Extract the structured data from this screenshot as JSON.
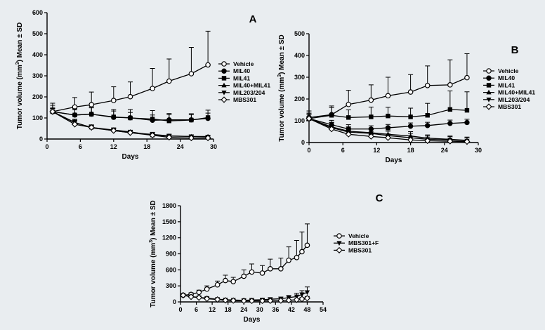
{
  "colors": {
    "background": "#e9edf0",
    "ink": "#000000",
    "open_fill": "#ffffff"
  },
  "chart_data": [
    {
      "panel_label": "A",
      "type": "line",
      "title": "",
      "xlabel": "Days",
      "ylabel_parts": [
        "Tumor volume (mm",
        "3",
        ") Mean ",
        "±",
        " SD"
      ],
      "xlim": [
        0,
        30
      ],
      "ylim": [
        0,
        600
      ],
      "xticks": [
        0,
        6,
        12,
        18,
        24,
        30
      ],
      "yticks": [
        0,
        100,
        200,
        300,
        400,
        500,
        600
      ],
      "legend_position": "right",
      "series": [
        {
          "name": "Vehicle",
          "marker": "circle-open",
          "x": [
            1,
            5,
            8,
            12,
            15,
            19,
            22,
            26,
            29
          ],
          "values": [
            130,
            152,
            163,
            183,
            201,
            240,
            275,
            310,
            352
          ],
          "err": [
            40,
            45,
            60,
            65,
            70,
            95,
            105,
            125,
            160
          ]
        },
        {
          "name": "MIL40",
          "marker": "circle-filled",
          "x": [
            1,
            5,
            8,
            12,
            15,
            19,
            22,
            26,
            29
          ],
          "values": [
            130,
            114,
            118,
            103,
            101,
            89,
            91,
            91,
            98
          ],
          "err": [
            20,
            25,
            30,
            30,
            25,
            25,
            25,
            25,
            25
          ]
        },
        {
          "name": "MIL41",
          "marker": "square-filled",
          "x": [
            1,
            5,
            8,
            12,
            15,
            19,
            22,
            26,
            29
          ],
          "values": [
            130,
            114,
            118,
            105,
            100,
            95,
            86,
            90,
            102
          ],
          "err": [
            30,
            30,
            35,
            35,
            40,
            40,
            35,
            30,
            35
          ]
        },
        {
          "name": "MIL40+MIL41",
          "marker": "triangle-up-filled",
          "x": [
            1,
            5,
            8,
            12,
            15,
            19,
            22,
            26,
            29
          ],
          "values": [
            130,
            78,
            55,
            43,
            34,
            18,
            14,
            12,
            12
          ],
          "err": [
            15,
            12,
            12,
            10,
            8,
            8,
            6,
            6,
            6
          ]
        },
        {
          "name": "MIL203/204",
          "marker": "triangle-down-filled",
          "x": [
            1,
            5,
            8,
            12,
            15,
            19,
            22,
            26,
            29
          ],
          "values": [
            130,
            79,
            53,
            40,
            30,
            22,
            15,
            12,
            10
          ],
          "err": [
            15,
            15,
            12,
            10,
            10,
            10,
            8,
            8,
            6
          ]
        },
        {
          "name": "MBS301",
          "marker": "diamond-open",
          "x": [
            1,
            5,
            8,
            12,
            15,
            19,
            22,
            26,
            29
          ],
          "values": [
            130,
            70,
            55,
            40,
            30,
            18,
            8,
            5,
            5
          ],
          "err": [
            15,
            15,
            12,
            10,
            8,
            8,
            5,
            5,
            5
          ]
        }
      ]
    },
    {
      "panel_label": "B",
      "type": "line",
      "title": "",
      "xlabel": "Days",
      "ylabel_parts": [
        "Tumor volume (mm",
        "3",
        ") Mean ",
        "±",
        " SD"
      ],
      "xlim": [
        0,
        30
      ],
      "ylim": [
        0,
        500
      ],
      "xticks": [
        0,
        6,
        12,
        18,
        24,
        30
      ],
      "yticks": [
        0,
        100,
        200,
        300,
        400,
        500
      ],
      "legend_position": "right",
      "series": [
        {
          "name": "Vehicle",
          "marker": "circle-open",
          "x": [
            0,
            4,
            7,
            11,
            14,
            18,
            21,
            25,
            28
          ],
          "values": [
            115,
            128,
            175,
            195,
            215,
            232,
            262,
            265,
            298
          ],
          "err": [
            30,
            40,
            65,
            70,
            85,
            80,
            90,
            115,
            110
          ]
        },
        {
          "name": "MIL40",
          "marker": "circle-filled",
          "x": [
            0,
            4,
            7,
            11,
            14,
            18,
            21,
            25,
            28
          ],
          "values": [
            110,
            82,
            62,
            62,
            68,
            75,
            78,
            88,
            92
          ],
          "err": [
            20,
            20,
            20,
            15,
            15,
            15,
            15,
            15,
            15
          ]
        },
        {
          "name": "MIL41",
          "marker": "square-filled",
          "x": [
            0,
            4,
            7,
            11,
            14,
            18,
            21,
            25,
            28
          ],
          "values": [
            110,
            125,
            115,
            118,
            122,
            118,
            125,
            152,
            148
          ],
          "err": [
            25,
            35,
            35,
            45,
            40,
            40,
            55,
            85,
            85
          ]
        },
        {
          "name": "MIL40+MIL41",
          "marker": "triangle-up-filled",
          "x": [
            0,
            4,
            7,
            11,
            14,
            18,
            21,
            25,
            28
          ],
          "values": [
            110,
            72,
            52,
            45,
            38,
            30,
            20,
            15,
            10
          ],
          "err": [
            20,
            20,
            20,
            20,
            20,
            20,
            15,
            15,
            15
          ]
        },
        {
          "name": "MIL203/204",
          "marker": "triangle-down-filled",
          "x": [
            0,
            4,
            7,
            11,
            14,
            18,
            21,
            25,
            28
          ],
          "values": [
            110,
            68,
            48,
            42,
            32,
            22,
            15,
            12,
            8
          ],
          "err": [
            25,
            25,
            20,
            20,
            20,
            20,
            15,
            15,
            15
          ]
        },
        {
          "name": "MBS301",
          "marker": "diamond-open",
          "x": [
            0,
            4,
            7,
            11,
            14,
            18,
            21,
            25,
            28
          ],
          "values": [
            110,
            62,
            38,
            28,
            22,
            12,
            8,
            6,
            4
          ],
          "err": [
            20,
            20,
            15,
            10,
            10,
            8,
            5,
            5,
            5
          ]
        }
      ]
    },
    {
      "panel_label": "C",
      "type": "line",
      "title": "",
      "xlabel": "Days",
      "ylabel_parts": [
        "Tumor volume (mm",
        "3",
        ") Mean ",
        "±",
        " SD"
      ],
      "xlim": [
        0,
        54
      ],
      "ylim": [
        0,
        1800
      ],
      "xticks": [
        0,
        6,
        12,
        18,
        24,
        30,
        36,
        42,
        48,
        54
      ],
      "yticks": [
        0,
        300,
        600,
        900,
        1200,
        1500,
        1800
      ],
      "legend_position": "right",
      "series": [
        {
          "name": "Vehicle",
          "marker": "circle-open",
          "x": [
            1,
            4,
            7,
            10,
            14,
            17,
            20,
            24,
            27,
            31,
            34,
            38,
            41,
            44,
            46,
            48
          ],
          "values": [
            125,
            140,
            180,
            240,
            320,
            400,
            380,
            480,
            560,
            540,
            620,
            620,
            780,
            830,
            940,
            1060
          ],
          "err": [
            20,
            30,
            40,
            60,
            70,
            100,
            80,
            120,
            150,
            140,
            180,
            200,
            250,
            320,
            370,
            400
          ]
        },
        {
          "name": "MBS301+F",
          "marker": "triangle-down-filled",
          "x": [
            1,
            4,
            7,
            10,
            14,
            17,
            20,
            24,
            27,
            31,
            34,
            38,
            41,
            44,
            46,
            48
          ],
          "values": [
            125,
            100,
            85,
            70,
            50,
            40,
            35,
            30,
            35,
            40,
            50,
            60,
            80,
            100,
            140,
            180
          ],
          "err": [
            20,
            20,
            15,
            15,
            10,
            10,
            10,
            10,
            15,
            20,
            25,
            30,
            40,
            60,
            70,
            100
          ]
        },
        {
          "name": "MBS301",
          "marker": "diamond-open",
          "x": [
            1,
            4,
            7,
            10,
            14,
            17,
            20,
            24,
            27,
            31,
            34,
            38,
            41,
            44,
            46,
            48
          ],
          "values": [
            125,
            95,
            80,
            60,
            45,
            30,
            25,
            20,
            20,
            20,
            22,
            25,
            30,
            40,
            55,
            70
          ],
          "err": [
            20,
            20,
            15,
            15,
            10,
            10,
            8,
            8,
            8,
            8,
            10,
            10,
            12,
            15,
            25,
            30
          ]
        }
      ]
    }
  ]
}
